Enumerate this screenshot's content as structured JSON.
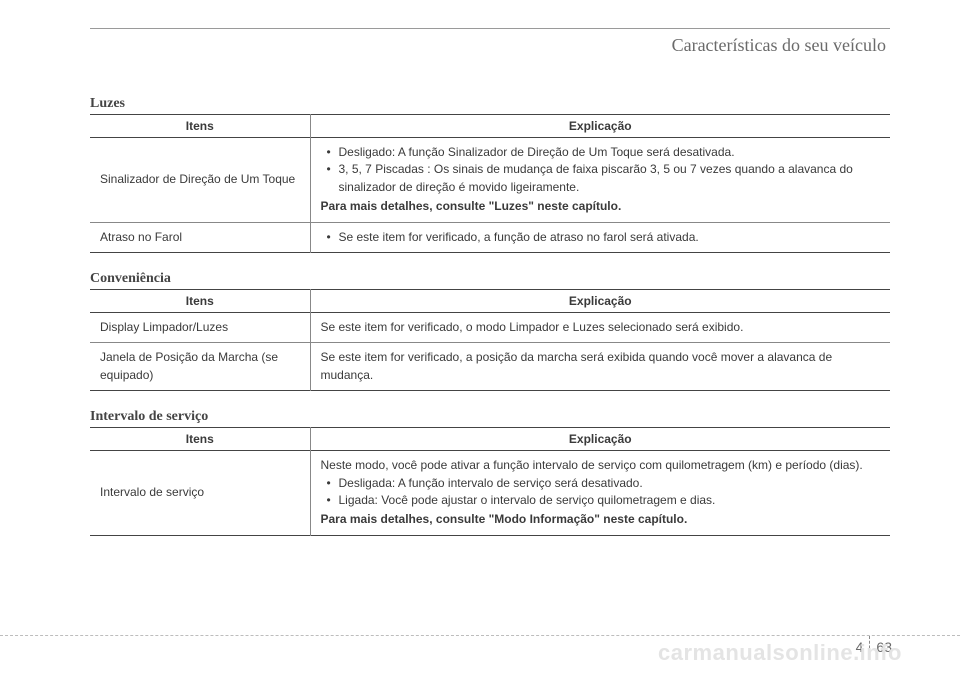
{
  "header": {
    "title": "Características do seu veículo"
  },
  "sections": {
    "luzes": {
      "title": "Luzes",
      "columns": {
        "items": "Itens",
        "explicacao": "Explicação"
      },
      "rows": [
        {
          "item": "Sinalizador de Direção de Um Toque",
          "bullets": [
            "Desligado: A função Sinalizador de Direção de Um Toque será desativada.",
            "3, 5, 7 Piscadas : Os sinais de mudança de faixa piscarão 3, 5 ou 7 vezes quando a alavanca do sinalizador de direção é movido ligeiramente."
          ],
          "footer": "Para mais detalhes, consulte \"Luzes\" neste capítulo."
        },
        {
          "item": "Atraso no Farol",
          "bullets": [
            "Se este item for verificado, a função de atraso no farol será ativada."
          ]
        }
      ]
    },
    "conveniencia": {
      "title": "Conveniência",
      "columns": {
        "items": "Itens",
        "explicacao": "Explicação"
      },
      "rows": [
        {
          "item": "Display Limpador/Luzes",
          "text": "Se este item for verificado, o modo Limpador e Luzes selecionado será exibido."
        },
        {
          "item": "Janela de Posição da Marcha (se equipado)",
          "text": "Se este item for verificado, a posição da marcha será exibida quando você mover a alavanca de mudança."
        }
      ]
    },
    "intervalo": {
      "title": "Intervalo de serviço",
      "columns": {
        "items": "Itens",
        "explicacao": "Explicação"
      },
      "rows": [
        {
          "item": "Intervalo de serviço",
          "intro": "Neste modo, você pode ativar a função intervalo de serviço com quilometragem (km) e período (dias).",
          "bullets": [
            "Desligada: A função intervalo de serviço será desativado.",
            "Ligada: Você pode ajustar o intervalo de serviço quilometragem e dias."
          ],
          "footer": "Para mais detalhes, consulte \"Modo Informação\" neste capítulo."
        }
      ]
    }
  },
  "pagenum": {
    "section": "4",
    "page": "63"
  },
  "watermark": "carmanualsonline.info"
}
